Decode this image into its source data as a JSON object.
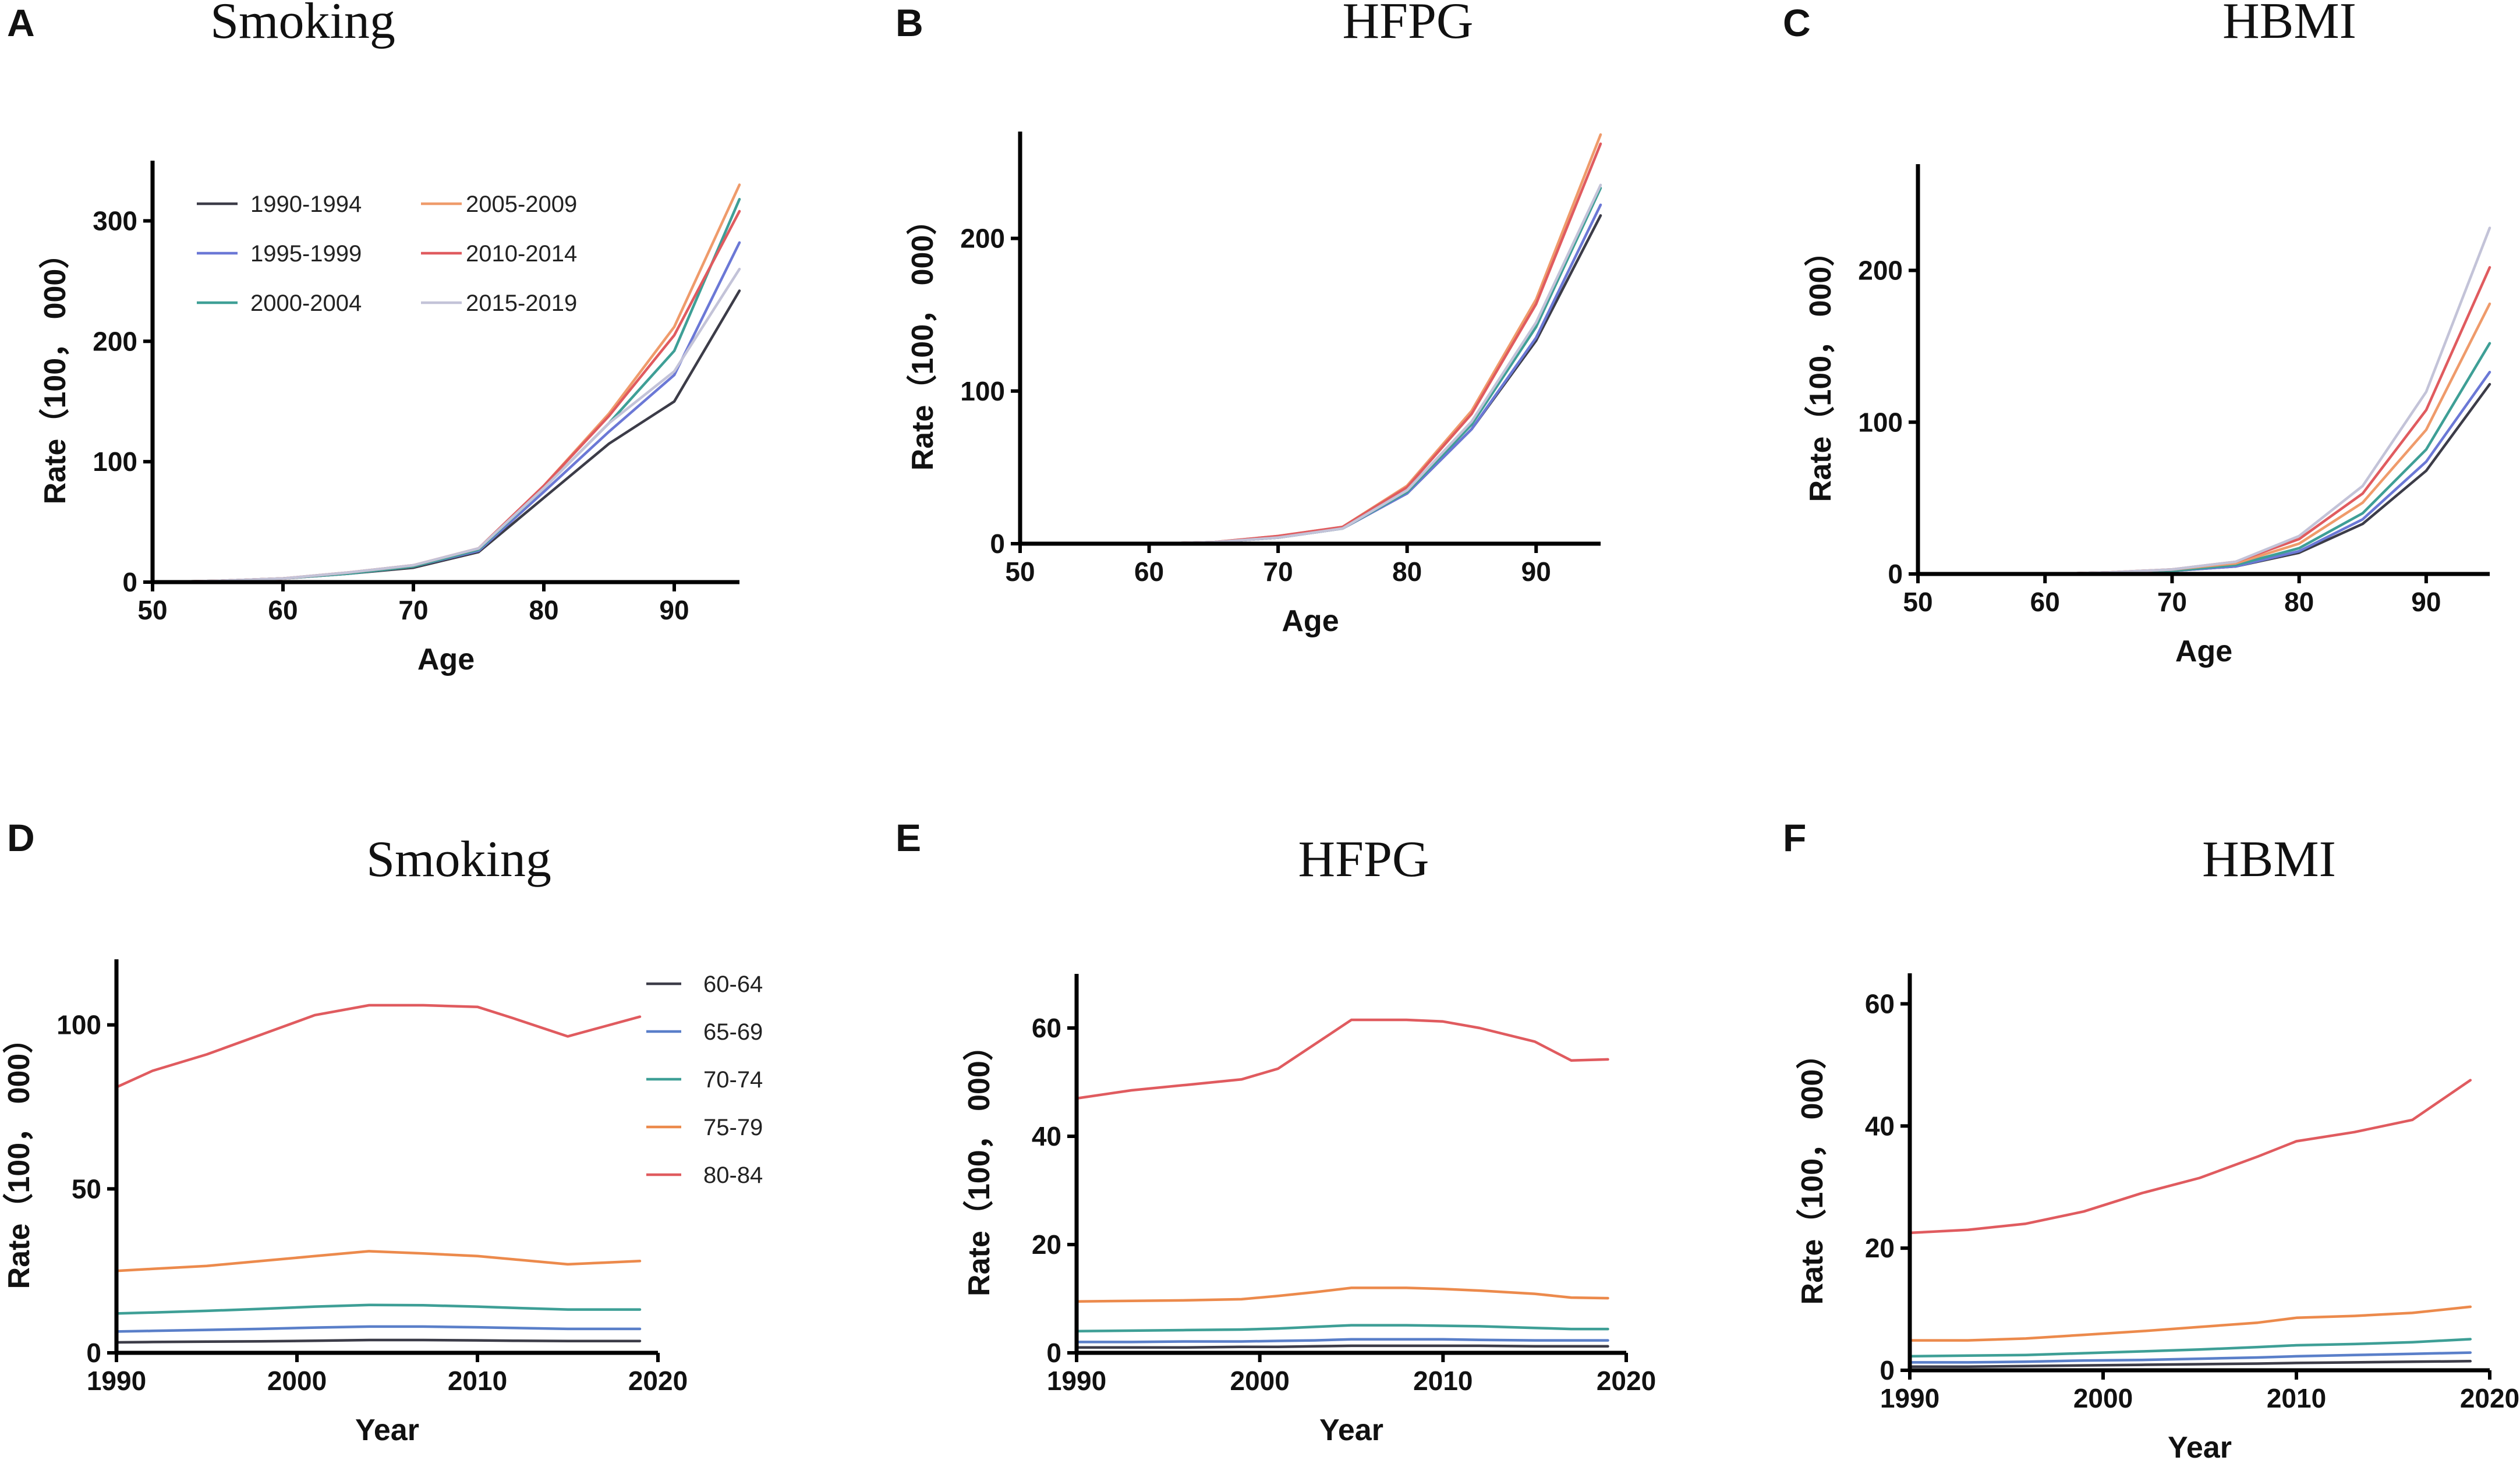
{
  "chart_data": [
    {
      "panel": "A",
      "type": "line",
      "title": "Smoking",
      "xlabel": "Age",
      "ylabel": "Rate（100， 000）",
      "xlim": [
        50,
        95
      ],
      "ylim": [
        0,
        350
      ],
      "xticks": [
        50,
        60,
        70,
        80,
        90
      ],
      "yticks": [
        0,
        100,
        200,
        300
      ],
      "x": [
        50,
        55,
        60,
        65,
        70,
        75,
        80,
        85,
        90,
        95
      ],
      "legend_position": "top-left",
      "series": [
        {
          "name": "1990-1994",
          "color": "#3c3c48",
          "values": [
            0,
            1,
            3,
            7,
            12,
            25,
            70,
            115,
            150,
            242
          ]
        },
        {
          "name": "1995-1999",
          "color": "#6b78d6",
          "values": [
            0,
            1,
            3,
            7,
            13,
            26,
            75,
            125,
            172,
            282
          ]
        },
        {
          "name": "2000-2004",
          "color": "#3e9f96",
          "values": [
            0,
            1,
            3,
            7,
            13,
            27,
            78,
            132,
            192,
            318
          ]
        },
        {
          "name": "2005-2009",
          "color": "#ef9b6b",
          "values": [
            0,
            1,
            3,
            8,
            14,
            28,
            80,
            140,
            212,
            330
          ]
        },
        {
          "name": "2010-2014",
          "color": "#e05b5f",
          "values": [
            0,
            1,
            3,
            8,
            14,
            28,
            80,
            138,
            205,
            308
          ]
        },
        {
          "name": "2015-2019",
          "color": "#c3c3d8",
          "values": [
            0,
            1,
            3,
            8,
            14,
            28,
            78,
            132,
            175,
            260
          ]
        }
      ]
    },
    {
      "panel": "B",
      "type": "line",
      "title": "HFPG",
      "xlabel": "Age",
      "ylabel": "Rate（100， 000）",
      "xlim": [
        50,
        95
      ],
      "ylim": [
        0,
        270
      ],
      "xticks": [
        50,
        60,
        70,
        80,
        90
      ],
      "yticks": [
        0,
        100,
        200
      ],
      "x": [
        50,
        55,
        60,
        65,
        70,
        75,
        80,
        85,
        90,
        95
      ],
      "series": [
        {
          "name": "1990-1994",
          "color": "#3c3c48",
          "values": [
            0,
            0,
            0,
            1,
            4,
            10,
            33,
            75,
            133,
            215
          ]
        },
        {
          "name": "1995-1999",
          "color": "#6b78d6",
          "values": [
            0,
            0,
            0,
            1,
            4,
            10,
            33,
            75,
            135,
            222
          ]
        },
        {
          "name": "2000-2004",
          "color": "#3e9f96",
          "values": [
            0,
            0,
            0,
            1,
            4,
            10,
            34,
            78,
            142,
            233
          ]
        },
        {
          "name": "2005-2009",
          "color": "#ef9b6b",
          "values": [
            0,
            0,
            0,
            1,
            5,
            11,
            38,
            87,
            160,
            268
          ]
        },
        {
          "name": "2010-2014",
          "color": "#e05b5f",
          "values": [
            0,
            0,
            0,
            1,
            5,
            11,
            37,
            85,
            157,
            262
          ]
        },
        {
          "name": "2015-2019",
          "color": "#c3c3d8",
          "values": [
            0,
            0,
            0,
            1,
            4,
            10,
            35,
            80,
            145,
            235
          ]
        }
      ]
    },
    {
      "panel": "C",
      "type": "line",
      "title": "HBMI",
      "xlabel": "Age",
      "ylabel": "Rate（100， 000）",
      "xlim": [
        50,
        95
      ],
      "ylim": [
        0,
        270
      ],
      "xticks": [
        50,
        60,
        70,
        80,
        90
      ],
      "yticks": [
        0,
        100,
        200
      ],
      "x": [
        50,
        55,
        60,
        65,
        70,
        75,
        80,
        85,
        90,
        95
      ],
      "series": [
        {
          "name": "1990-1994",
          "color": "#3c3c48",
          "values": [
            0,
            0,
            0,
            1,
            2,
            5,
            14,
            33,
            68,
            125
          ]
        },
        {
          "name": "1995-1999",
          "color": "#6b78d6",
          "values": [
            0,
            0,
            0,
            1,
            2,
            5,
            15,
            36,
            74,
            133
          ]
        },
        {
          "name": "2000-2004",
          "color": "#3e9f96",
          "values": [
            0,
            0,
            0,
            1,
            2,
            6,
            17,
            40,
            82,
            152
          ]
        },
        {
          "name": "2005-2009",
          "color": "#ef9b6b",
          "values": [
            0,
            0,
            0,
            1,
            3,
            7,
            20,
            47,
            95,
            178
          ]
        },
        {
          "name": "2010-2014",
          "color": "#e05b5f",
          "values": [
            0,
            0,
            0,
            1,
            3,
            8,
            23,
            53,
            108,
            202
          ]
        },
        {
          "name": "2015-2019",
          "color": "#c3c3d8",
          "values": [
            0,
            0,
            0,
            1,
            3,
            8,
            25,
            58,
            120,
            228
          ]
        }
      ]
    },
    {
      "panel": "D",
      "type": "line",
      "title": "Smoking",
      "xlabel": "Year",
      "ylabel": "Rate（100， 000）",
      "xlim": [
        1990,
        2020
      ],
      "ylim": [
        0,
        120
      ],
      "xticks": [
        1990,
        2000,
        2010,
        2020
      ],
      "yticks": [
        0,
        50,
        100
      ],
      "x": [
        1990,
        1992,
        1995,
        1998,
        2001,
        2004,
        2007,
        2010,
        2012,
        2015,
        2017,
        2019
      ],
      "legend_position": "top-right",
      "series": [
        {
          "name": "60-64",
          "color": "#3c3c48",
          "values": [
            3.2,
            3.3,
            3.4,
            3.5,
            3.7,
            3.9,
            3.9,
            3.8,
            3.7,
            3.6,
            3.6,
            3.6
          ]
        },
        {
          "name": "65-69",
          "color": "#5a7fc9",
          "values": [
            6.5,
            6.7,
            7.0,
            7.3,
            7.7,
            8.0,
            8.0,
            7.8,
            7.6,
            7.3,
            7.3,
            7.3
          ]
        },
        {
          "name": "70-74",
          "color": "#3e9f96",
          "values": [
            12,
            12.3,
            12.8,
            13.4,
            14.1,
            14.6,
            14.5,
            14.1,
            13.7,
            13.2,
            13.2,
            13.2
          ]
        },
        {
          "name": "75-79",
          "color": "#ec8a4c",
          "values": [
            25,
            25.6,
            26.5,
            28,
            29.5,
            31,
            30.3,
            29.5,
            28.5,
            27,
            27.5,
            28
          ]
        },
        {
          "name": "80-84",
          "color": "#e05b5f",
          "values": [
            81,
            86,
            91,
            97,
            103,
            106,
            106,
            105.5,
            102,
            96.5,
            99.5,
            102.5
          ]
        }
      ]
    },
    {
      "panel": "E",
      "type": "line",
      "title": "HFPG",
      "xlabel": "Year",
      "ylabel": "Rate（100， 000）",
      "xlim": [
        1990,
        2020
      ],
      "ylim": [
        0,
        70
      ],
      "xticks": [
        1990,
        2000,
        2010,
        2020
      ],
      "yticks": [
        0,
        20,
        40,
        60
      ],
      "x": [
        1990,
        1993,
        1996,
        1999,
        2001,
        2003,
        2005,
        2008,
        2010,
        2012,
        2015,
        2017,
        2019
      ],
      "series": [
        {
          "name": "60-64",
          "color": "#3c3c48",
          "values": [
            1.0,
            1.0,
            1.0,
            1.1,
            1.1,
            1.2,
            1.3,
            1.3,
            1.3,
            1.3,
            1.2,
            1.2,
            1.2
          ]
        },
        {
          "name": "65-69",
          "color": "#5a7fc9",
          "values": [
            2.0,
            2.0,
            2.1,
            2.1,
            2.2,
            2.3,
            2.5,
            2.5,
            2.5,
            2.4,
            2.3,
            2.3,
            2.3
          ]
        },
        {
          "name": "70-74",
          "color": "#3e9f96",
          "values": [
            4.0,
            4.1,
            4.2,
            4.3,
            4.5,
            4.8,
            5.1,
            5.1,
            5.0,
            4.9,
            4.6,
            4.4,
            4.4
          ]
        },
        {
          "name": "75-79",
          "color": "#ec8a4c",
          "values": [
            9.5,
            9.6,
            9.7,
            9.9,
            10.5,
            11.2,
            12,
            12,
            11.8,
            11.5,
            10.9,
            10.2,
            10.1
          ]
        },
        {
          "name": "80-84",
          "color": "#e05b5f",
          "values": [
            47,
            48.5,
            49.5,
            50.5,
            52.5,
            57,
            61.5,
            61.5,
            61.2,
            60,
            57.5,
            54,
            54.2
          ]
        }
      ]
    },
    {
      "panel": "F",
      "type": "line",
      "title": "HBMI",
      "xlabel": "Year",
      "ylabel": "Rate（100， 000）",
      "xlim": [
        1990,
        2020
      ],
      "ylim": [
        0,
        65
      ],
      "xticks": [
        1990,
        2000,
        2010,
        2020
      ],
      "yticks": [
        0,
        20,
        40,
        60
      ],
      "x": [
        1990,
        1993,
        1996,
        1999,
        2002,
        2005,
        2008,
        2010,
        2013,
        2016,
        2019
      ],
      "series": [
        {
          "name": "60-64",
          "color": "#3c3c48",
          "values": [
            0.6,
            0.6,
            0.7,
            0.8,
            0.9,
            1.0,
            1.1,
            1.2,
            1.3,
            1.4,
            1.5
          ]
        },
        {
          "name": "65-69",
          "color": "#5a7fc9",
          "values": [
            1.3,
            1.3,
            1.4,
            1.6,
            1.7,
            1.9,
            2.1,
            2.3,
            2.5,
            2.7,
            2.9
          ]
        },
        {
          "name": "70-74",
          "color": "#3e9f96",
          "values": [
            2.3,
            2.4,
            2.5,
            2.8,
            3.1,
            3.4,
            3.8,
            4.1,
            4.3,
            4.6,
            5.1
          ]
        },
        {
          "name": "75-79",
          "color": "#ec8a4c",
          "values": [
            4.9,
            4.9,
            5.2,
            5.8,
            6.4,
            7.1,
            7.8,
            8.6,
            8.9,
            9.4,
            10.4
          ]
        },
        {
          "name": "80-84",
          "color": "#e05b5f",
          "values": [
            22.5,
            23,
            24,
            26,
            29,
            31.5,
            35,
            37.5,
            39,
            41,
            47.5
          ]
        }
      ]
    }
  ]
}
